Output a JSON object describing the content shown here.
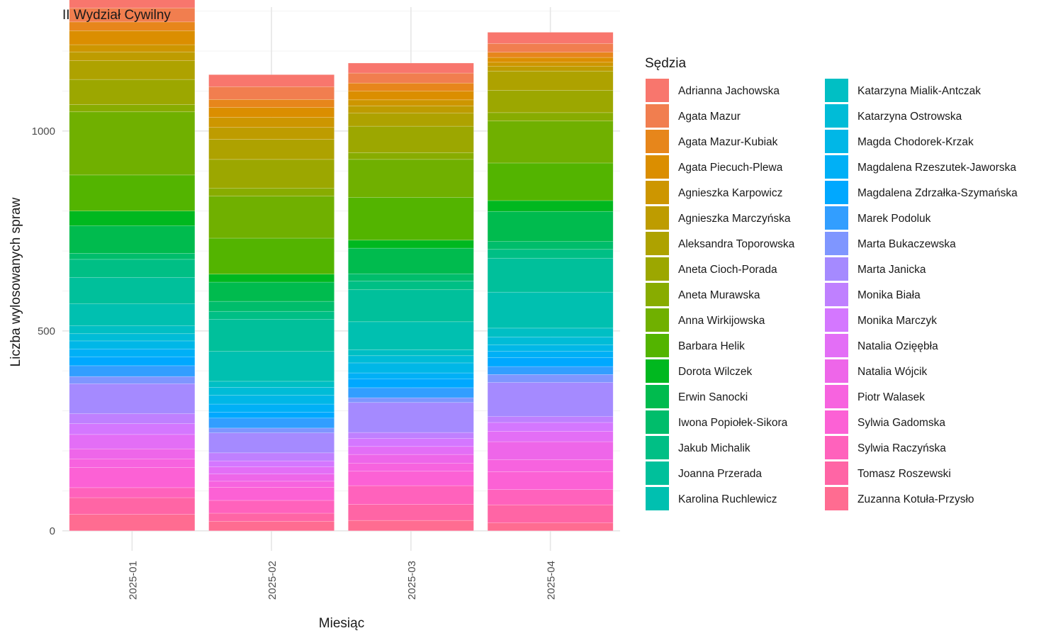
{
  "chart_data": {
    "type": "bar",
    "stacked": true,
    "title": "II Wydział Cywilny",
    "xlabel": "Miesiąc",
    "ylabel": "Liczba wylosowanych spraw",
    "ylim": [
      -50,
      1310
    ],
    "yticks": [
      0,
      500,
      1000
    ],
    "grid": true,
    "legend_title": "Sędzia",
    "legend_position": "right",
    "categories": [
      "2025-01",
      "2025-02",
      "2025-03",
      "2025-04"
    ],
    "series": [
      {
        "name": "Adrianna Jachowska",
        "color": "#F8766D",
        "values": [
          45,
          30,
          25,
          28
        ]
      },
      {
        "name": "Agata Mazur",
        "color": "#F17E4F",
        "values": [
          35,
          32,
          25,
          22
        ]
      },
      {
        "name": "Agata Mazur-Kubiak",
        "color": "#E7861B",
        "values": [
          22,
          20,
          20,
          13
        ]
      },
      {
        "name": "Agata Piecuch-Plewa",
        "color": "#DB8E00",
        "values": [
          35,
          25,
          22,
          12
        ]
      },
      {
        "name": "Agnieszka Karpowicz",
        "color": "#CD9600",
        "values": [
          18,
          25,
          15,
          10
        ]
      },
      {
        "name": "Agnieszka Marczyńska",
        "color": "#BE9C00",
        "values": [
          22,
          30,
          18,
          12
        ]
      },
      {
        "name": "Aleksandra Toporowska",
        "color": "#AEA200",
        "values": [
          47,
          50,
          33,
          48
        ]
      },
      {
        "name": "Aneta Cioch-Porada",
        "color": "#9CA700",
        "values": [
          63,
          72,
          66,
          56
        ]
      },
      {
        "name": "Aneta Murawska",
        "color": "#88AC00",
        "values": [
          18,
          20,
          17,
          21
        ]
      },
      {
        "name": "Anna Wirkijowska",
        "color": "#70B000",
        "values": [
          158,
          105,
          95,
          105
        ]
      },
      {
        "name": "Barbara Helik",
        "color": "#53B400",
        "values": [
          90,
          90,
          107,
          94
        ]
      },
      {
        "name": "Dorota Wilczek",
        "color": "#00B81F",
        "values": [
          37,
          20,
          20,
          27
        ]
      },
      {
        "name": "Erwin Sanocki",
        "color": "#00BB4E",
        "values": [
          69,
          48,
          64,
          75
        ]
      },
      {
        "name": "Iwona Popiołek-Sikora",
        "color": "#00BD6B",
        "values": [
          15,
          25,
          18,
          20
        ]
      },
      {
        "name": "Jakub Michalik",
        "color": "#00BF85",
        "values": [
          45,
          20,
          22,
          22
        ]
      },
      {
        "name": "Joanna Przerada",
        "color": "#00C09B",
        "values": [
          66,
          80,
          80,
          85
        ]
      },
      {
        "name": "Karolina Ruchlewicz",
        "color": "#00C0B0",
        "values": [
          55,
          75,
          70,
          90
        ]
      },
      {
        "name": "Katarzyna Mialik-Antczak",
        "color": "#00BFC4",
        "values": [
          20,
          15,
          15,
          22
        ]
      },
      {
        "name": "Katarzyna Ostrowska",
        "color": "#00BCD7",
        "values": [
          18,
          20,
          18,
          20
        ]
      },
      {
        "name": "Magda Chodorek-Krzak",
        "color": "#00B7E7",
        "values": [
          20,
          22,
          25,
          16
        ]
      },
      {
        "name": "Magdalena Rzeszutek-Jaworska",
        "color": "#00B0F6",
        "values": [
          20,
          20,
          15,
          16
        ]
      },
      {
        "name": "Magdalena Zdrzałka-Szymańska",
        "color": "#00A8FF",
        "values": [
          22,
          15,
          22,
          22
        ]
      },
      {
        "name": "Marek Podoluk",
        "color": "#329EFF",
        "values": [
          27,
          25,
          25,
          20
        ]
      },
      {
        "name": "Marta Bukaczewska",
        "color": "#7F96FF",
        "values": [
          18,
          12,
          12,
          20
        ]
      },
      {
        "name": "Marta Janicka",
        "color": "#A58AFF",
        "values": [
          75,
          50,
          75,
          85
        ]
      },
      {
        "name": "Monika Biała",
        "color": "#BF80FF",
        "values": [
          25,
          20,
          15,
          15
        ]
      },
      {
        "name": "Monika Marczyk",
        "color": "#D477FF",
        "values": [
          27,
          15,
          20,
          22
        ]
      },
      {
        "name": "Natalia Ozięębła",
        "color": "#E36EF6",
        "values": [
          36,
          18,
          20,
          26
        ]
      },
      {
        "name": "Natalia Wójcik",
        "color": "#EE66E9",
        "values": [
          25,
          18,
          22,
          45
        ]
      },
      {
        "name": "Piotr Walasek",
        "color": "#F763DF",
        "values": [
          22,
          15,
          20,
          30
        ]
      },
      {
        "name": "Sylwia Gadomska",
        "color": "#FC61D5",
        "values": [
          50,
          33,
          36,
          45
        ]
      },
      {
        "name": "Sylwia Raczyńska",
        "color": "#FF62BC",
        "values": [
          25,
          32,
          47,
          38
        ]
      },
      {
        "name": "Tomasz Roszewski",
        "color": "#FF65A5",
        "values": [
          42,
          20,
          40,
          45
        ]
      },
      {
        "name": "Zuzanna Kotuła-Przysło",
        "color": "#FF6C91",
        "values": [
          41,
          24,
          26,
          20
        ]
      }
    ]
  }
}
